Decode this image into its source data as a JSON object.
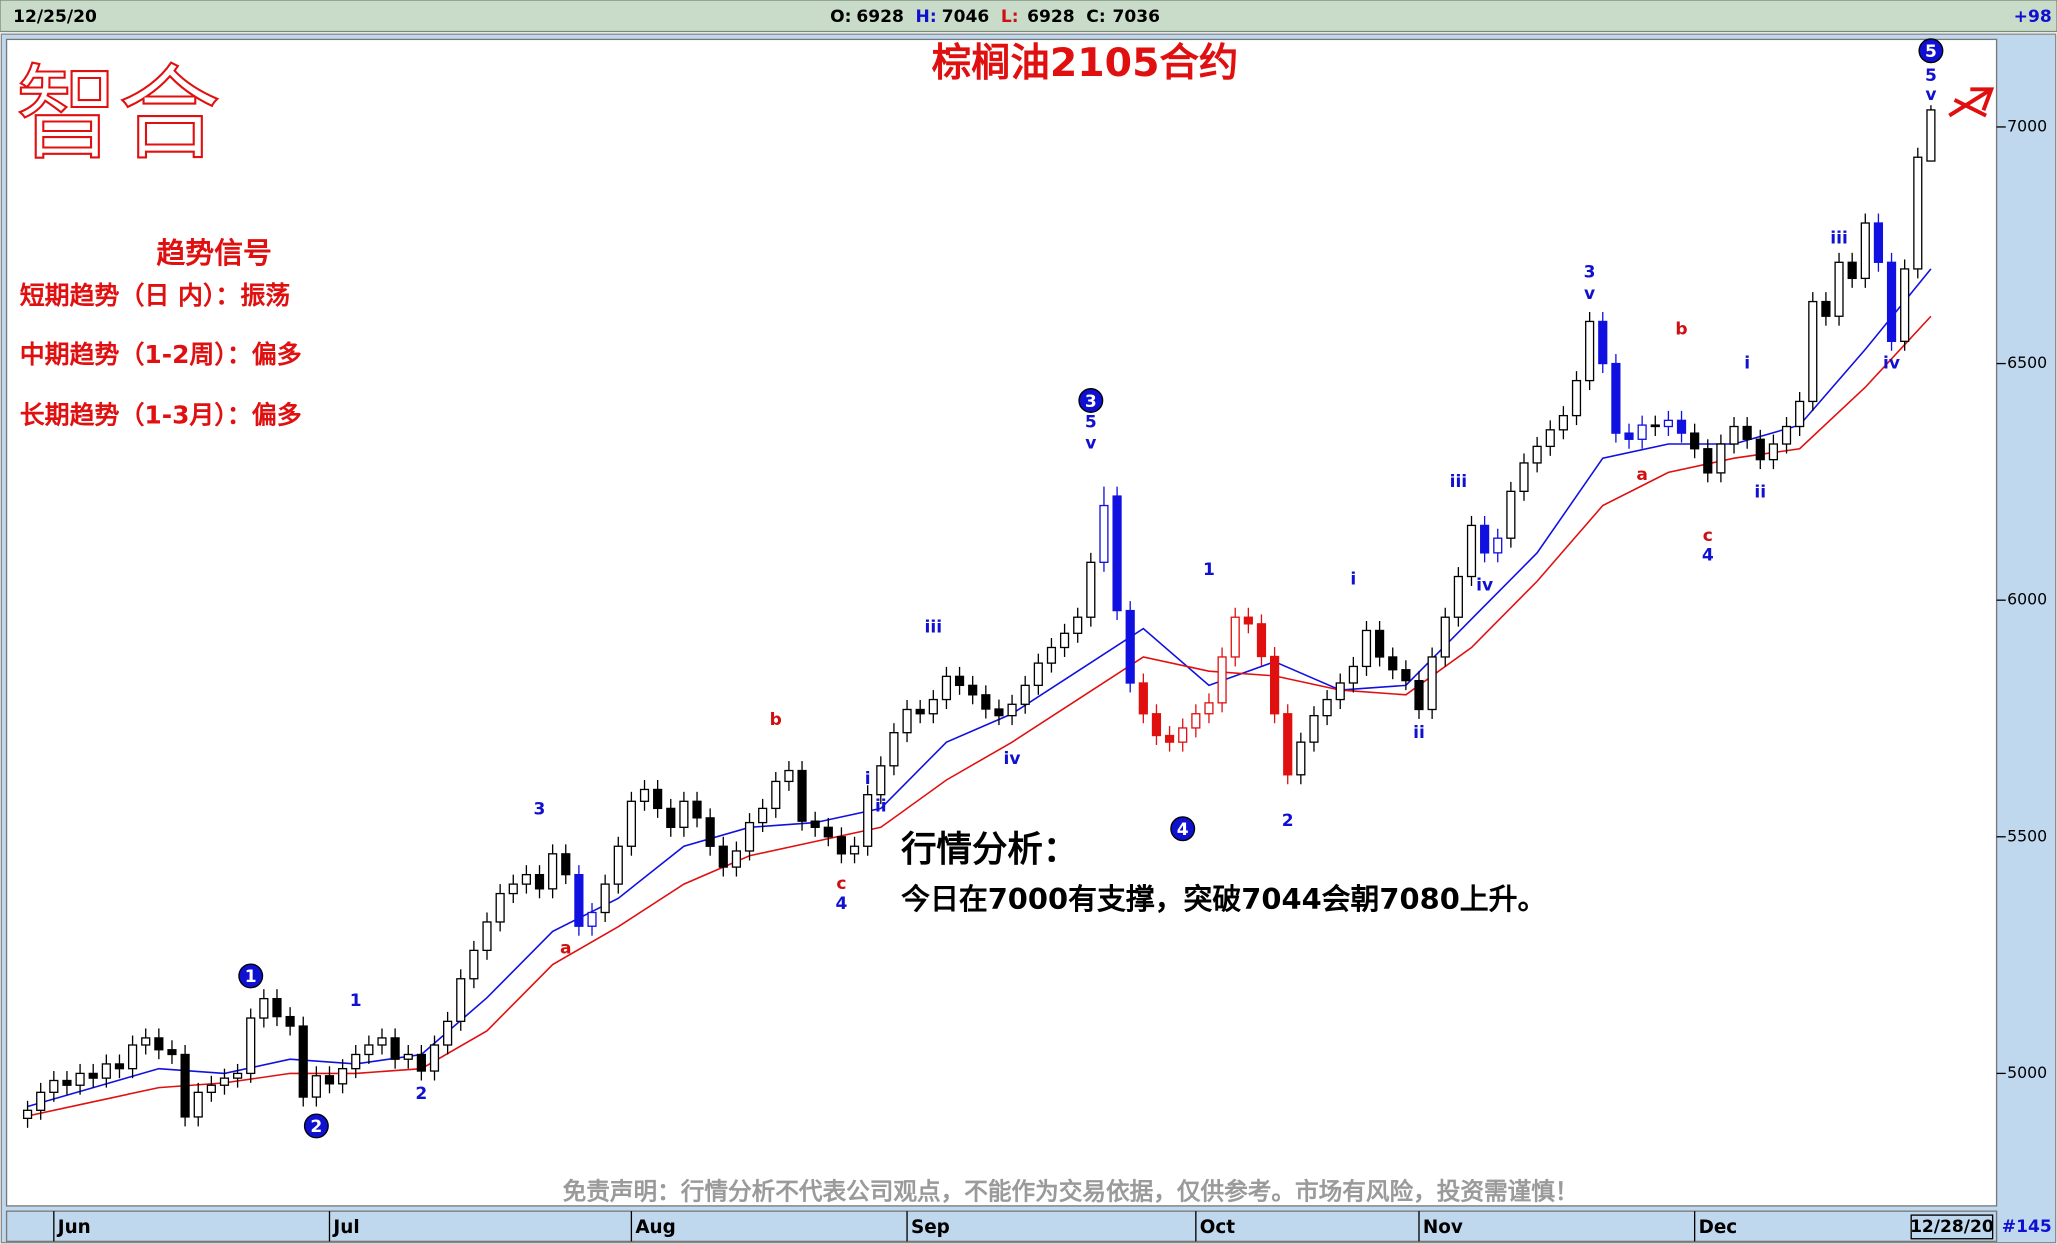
{
  "header": {
    "date": "12/25/20",
    "fields": [
      {
        "label": "O:",
        "value": 6928,
        "color": "#000"
      },
      {
        "label": "H:",
        "value": 7046,
        "color": "#1010d0"
      },
      {
        "label": "L:",
        "value": 6928,
        "color": "#d01010"
      },
      {
        "label": "C:",
        "value": 7036,
        "color": "#000"
      }
    ],
    "change": "+98"
  },
  "footer": {
    "date": "12/28/20",
    "count": "#145"
  },
  "logo": "智合",
  "signals": {
    "title": "趋势信号",
    "lines": [
      "短期趋势（日 内）：振荡",
      "中期趋势（1-2周）：偏多",
      "长期趋势（1-3月）：偏多"
    ]
  },
  "analysis": {
    "title": "行情分析：",
    "text": "今日在7000有支撑，突破7044会朝7080上升。"
  },
  "disclaimer": "免责声明：行情分析不代表公司观点，不能作为交易依据，仅供参考。市场有风险，投资需谨慎！",
  "chart_data": {
    "type": "candlestick",
    "title": "棕榈油2105合约",
    "ylim": [
      4720,
      7185
    ],
    "yticks": [
      5000,
      5500,
      6000,
      6500,
      7000
    ],
    "xlim": [
      -1,
      148
    ],
    "xticks": [
      {
        "value": 2,
        "label": "Jun"
      },
      {
        "value": 23,
        "label": "Jul"
      },
      {
        "value": 46,
        "label": "Aug"
      },
      {
        "value": 67,
        "label": "Sep"
      },
      {
        "value": 89,
        "label": "Oct"
      },
      {
        "value": 106,
        "label": "Nov"
      },
      {
        "value": 127,
        "label": "Dec"
      }
    ],
    "up_color": "#ffffff",
    "down_color": "#000000",
    "highlights": [
      {
        "start": 42,
        "end": 43,
        "color": "#1010e0"
      },
      {
        "start": 82,
        "end": 84,
        "color": "#1010e0"
      },
      {
        "start": 85,
        "end": 96,
        "color": "#e01010"
      },
      {
        "start": 111,
        "end": 112,
        "color": "#1010e0"
      },
      {
        "start": 120,
        "end": 123,
        "color": "#1010e0"
      },
      {
        "start": 125,
        "end": 126,
        "color": "#1010e0"
      },
      {
        "start": 141,
        "end": 142,
        "color": "#1010e0"
      }
    ],
    "open": [
      4905,
      4922,
      4960,
      4985,
      4975,
      5000,
      4990,
      5020,
      5010,
      5060,
      5075,
      5050,
      5040,
      4908,
      4960,
      4975,
      4990,
      5000,
      5117,
      5158,
      5120,
      5100,
      4950,
      4995,
      4978,
      5010,
      5040,
      5060,
      5075,
      5030,
      5040,
      5005,
      5060,
      5110,
      5200,
      5260,
      5320,
      5380,
      5400,
      5420,
      5390,
      5464,
      5420,
      5311,
      5340,
      5400,
      5480,
      5575,
      5600,
      5560,
      5520,
      5575,
      5540,
      5480,
      5436,
      5470,
      5530,
      5560,
      5617,
      5640,
      5533,
      5520,
      5500,
      5464,
      5480,
      5589,
      5650,
      5720,
      5769,
      5760,
      5790,
      5839,
      5820,
      5800,
      5770,
      5756,
      5780,
      5820,
      5867,
      5900,
      5930,
      5964,
      6080,
      6220,
      5978,
      5825,
      5760,
      5714,
      5700,
      5730,
      5760,
      5783,
      5880,
      5964,
      5950,
      5881,
      5760,
      5631,
      5700,
      5756,
      5790,
      5825,
      5860,
      5936,
      5880,
      5853,
      5830,
      5769,
      5880,
      5964,
      6050,
      6158,
      6100,
      6131,
      6230,
      6290,
      6325,
      6360,
      6390,
      6464,
      6589,
      6500,
      6353,
      6340,
      6370,
      6367,
      6380,
      6353,
      6320,
      6269,
      6330,
      6367,
      6340,
      6297,
      6330,
      6367,
      6420,
      6631,
      6600,
      6714,
      6680,
      6797,
      6714,
      6547,
      6700,
      6928
    ],
    "high": [
      4942,
      4980,
      5005,
      5005,
      5020,
      5020,
      5040,
      5040,
      5080,
      5095,
      5095,
      5070,
      5060,
      4980,
      4995,
      5010,
      5020,
      5137,
      5178,
      5178,
      5140,
      5120,
      5015,
      5015,
      5030,
      5060,
      5080,
      5095,
      5095,
      5060,
      5060,
      5080,
      5130,
      5220,
      5280,
      5340,
      5400,
      5420,
      5440,
      5440,
      5484,
      5484,
      5440,
      5360,
      5420,
      5500,
      5595,
      5620,
      5620,
      5580,
      5595,
      5595,
      5560,
      5500,
      5490,
      5550,
      5580,
      5637,
      5660,
      5660,
      5553,
      5540,
      5520,
      5500,
      5609,
      5670,
      5740,
      5789,
      5789,
      5810,
      5859,
      5859,
      5840,
      5820,
      5790,
      5800,
      5840,
      5887,
      5920,
      5950,
      5984,
      6100,
      6240,
      6240,
      5998,
      5845,
      5780,
      5734,
      5750,
      5780,
      5803,
      5900,
      5984,
      5984,
      5970,
      5901,
      5780,
      5720,
      5776,
      5810,
      5845,
      5880,
      5956,
      5956,
      5900,
      5873,
      5850,
      5900,
      5984,
      6070,
      6178,
      6178,
      6151,
      6250,
      6310,
      6345,
      6380,
      6410,
      6484,
      6609,
      6609,
      6520,
      6373,
      6390,
      6390,
      6400,
      6400,
      6373,
      6340,
      6350,
      6387,
      6387,
      6360,
      6350,
      6387,
      6440,
      6651,
      6651,
      6734,
      6734,
      6817,
      6817,
      6734,
      6720,
      6956,
      7046
    ],
    "low": [
      4885,
      4902,
      4940,
      4955,
      4955,
      4970,
      4970,
      4990,
      4990,
      5040,
      5030,
      5020,
      4888,
      4888,
      4940,
      4955,
      4970,
      4980,
      5097,
      5100,
      5080,
      4930,
      4930,
      4958,
      4958,
      4990,
      5020,
      5040,
      5010,
      5010,
      4985,
      4985,
      5040,
      5090,
      5180,
      5240,
      5300,
      5360,
      5380,
      5370,
      5370,
      5400,
      5291,
      5291,
      5320,
      5380,
      5460,
      5555,
      5540,
      5500,
      5500,
      5520,
      5460,
      5416,
      5416,
      5450,
      5510,
      5540,
      5597,
      5513,
      5500,
      5480,
      5444,
      5444,
      5460,
      5569,
      5630,
      5700,
      5740,
      5740,
      5770,
      5800,
      5780,
      5750,
      5736,
      5736,
      5760,
      5800,
      5847,
      5880,
      5910,
      5944,
      6060,
      5958,
      5805,
      5740,
      5694,
      5680,
      5680,
      5710,
      5740,
      5763,
      5860,
      5930,
      5861,
      5740,
      5611,
      5611,
      5680,
      5736,
      5770,
      5805,
      5840,
      5860,
      5833,
      5810,
      5749,
      5749,
      5860,
      5944,
      6030,
      6080,
      6080,
      6111,
      6210,
      6270,
      6305,
      6340,
      6370,
      6444,
      6480,
      6333,
      6320,
      6320,
      6347,
      6347,
      6333,
      6300,
      6249,
      6249,
      6310,
      6320,
      6277,
      6277,
      6310,
      6347,
      6400,
      6580,
      6580,
      6660,
      6660,
      6694,
      6527,
      6527,
      6680,
      6928
    ],
    "close": [
      4922,
      4960,
      4985,
      4975,
      5000,
      4990,
      5020,
      5010,
      5060,
      5075,
      5050,
      5040,
      4908,
      4960,
      4975,
      4990,
      5000,
      5117,
      5158,
      5120,
      5100,
      4950,
      4995,
      4978,
      5010,
      5040,
      5060,
      5075,
      5030,
      5040,
      5005,
      5060,
      5110,
      5200,
      5260,
      5320,
      5380,
      5400,
      5420,
      5390,
      5464,
      5420,
      5311,
      5340,
      5400,
      5480,
      5575,
      5600,
      5560,
      5520,
      5575,
      5540,
      5480,
      5436,
      5470,
      5530,
      5560,
      5617,
      5640,
      5533,
      5520,
      5500,
      5464,
      5480,
      5589,
      5650,
      5720,
      5769,
      5760,
      5790,
      5839,
      5820,
      5800,
      5770,
      5756,
      5780,
      5820,
      5867,
      5900,
      5930,
      5964,
      6080,
      6200,
      5978,
      5825,
      5760,
      5714,
      5700,
      5730,
      5760,
      5783,
      5880,
      5964,
      5950,
      5881,
      5760,
      5631,
      5700,
      5756,
      5790,
      5825,
      5860,
      5936,
      5880,
      5853,
      5830,
      5769,
      5880,
      5964,
      6050,
      6158,
      6100,
      6131,
      6230,
      6290,
      6325,
      6360,
      6390,
      6464,
      6589,
      6500,
      6353,
      6340,
      6370,
      6367,
      6380,
      6353,
      6320,
      6269,
      6330,
      6367,
      6340,
      6297,
      6330,
      6367,
      6420,
      6631,
      6600,
      6714,
      6680,
      6797,
      6714,
      6547,
      6700,
      6936,
      7036
    ],
    "lines": [
      {
        "color": "#1010e0",
        "x": [
          0,
          5,
          10,
          15,
          20,
          25,
          30,
          35,
          40,
          45,
          50,
          55,
          60,
          65,
          70,
          75,
          80,
          85,
          90,
          95,
          100,
          105,
          110,
          115,
          120,
          125,
          130,
          135,
          140,
          145
        ],
        "values": [
          4930,
          4970,
          5010,
          5000,
          5030,
          5020,
          5040,
          5160,
          5300,
          5370,
          5480,
          5520,
          5530,
          5560,
          5700,
          5760,
          5850,
          5940,
          5820,
          5870,
          5810,
          5820,
          5960,
          6100,
          6300,
          6330,
          6330,
          6370,
          6530,
          6700
        ]
      },
      {
        "color": "#e01010",
        "x": [
          0,
          5,
          10,
          15,
          20,
          25,
          30,
          35,
          40,
          45,
          50,
          55,
          60,
          65,
          70,
          75,
          80,
          85,
          90,
          95,
          100,
          105,
          110,
          115,
          120,
          125,
          130,
          135,
          140,
          145
        ],
        "values": [
          4910,
          4940,
          4970,
          4980,
          5000,
          5000,
          5010,
          5090,
          5230,
          5310,
          5400,
          5460,
          5490,
          5520,
          5620,
          5700,
          5790,
          5880,
          5850,
          5840,
          5810,
          5800,
          5900,
          6040,
          6200,
          6270,
          6300,
          6320,
          6450,
          6600
        ]
      }
    ],
    "annotations": [
      {
        "text": "1",
        "x": 17,
        "y": 5206,
        "color": "#1010d0",
        "circled": true
      },
      {
        "text": "2",
        "x": 22,
        "y": 4889,
        "color": "#1010d0",
        "circled": true
      },
      {
        "text": "1",
        "x": 25,
        "y": 5153,
        "color": "#1010d0"
      },
      {
        "text": "2",
        "x": 30,
        "y": 4956,
        "color": "#1010d0"
      },
      {
        "text": "3",
        "x": 39,
        "y": 5558,
        "color": "#1010d0"
      },
      {
        "text": "a",
        "x": 41,
        "y": 5264,
        "color": "#d01010"
      },
      {
        "text": "b",
        "x": 57,
        "y": 5747,
        "color": "#d01010"
      },
      {
        "text": "c",
        "x": 62,
        "y": 5400,
        "color": "#d01010"
      },
      {
        "text": "4",
        "x": 62,
        "y": 5358,
        "color": "#1010d0"
      },
      {
        "text": "i",
        "x": 64,
        "y": 5622,
        "color": "#1010d0"
      },
      {
        "text": "ii",
        "x": 65,
        "y": 5564,
        "color": "#1010d0"
      },
      {
        "text": "iii",
        "x": 69,
        "y": 5942,
        "color": "#1010d0"
      },
      {
        "text": "iv",
        "x": 75,
        "y": 5664,
        "color": "#1010d0"
      },
      {
        "text": "3",
        "x": 81,
        "y": 6422,
        "color": "#1010d0",
        "circled": true
      },
      {
        "text": "5",
        "x": 81,
        "y": 6375,
        "color": "#1010d0"
      },
      {
        "text": "v",
        "x": 81,
        "y": 6331,
        "color": "#1010d0"
      },
      {
        "text": "4",
        "x": 88,
        "y": 5517,
        "color": "#1010d0",
        "circled": true
      },
      {
        "text": "1",
        "x": 90,
        "y": 6064,
        "color": "#1010d0"
      },
      {
        "text": "2",
        "x": 96,
        "y": 5533,
        "color": "#1010d0"
      },
      {
        "text": "i",
        "x": 101,
        "y": 6044,
        "color": "#1010d0"
      },
      {
        "text": "ii",
        "x": 106,
        "y": 5719,
        "color": "#1010d0"
      },
      {
        "text": "iii",
        "x": 109,
        "y": 6250,
        "color": "#1010d0"
      },
      {
        "text": "iv",
        "x": 111,
        "y": 6031,
        "color": "#1010d0"
      },
      {
        "text": "3",
        "x": 119,
        "y": 6692,
        "color": "#1010d0"
      },
      {
        "text": "v",
        "x": 119,
        "y": 6647,
        "color": "#1010d0"
      },
      {
        "text": "a",
        "x": 123,
        "y": 6264,
        "color": "#d01010"
      },
      {
        "text": "b",
        "x": 126,
        "y": 6572,
        "color": "#d01010"
      },
      {
        "text": "c",
        "x": 128,
        "y": 6136,
        "color": "#d01010"
      },
      {
        "text": "4",
        "x": 128,
        "y": 6094,
        "color": "#1010d0"
      },
      {
        "text": "i",
        "x": 131,
        "y": 6500,
        "color": "#1010d0"
      },
      {
        "text": "ii",
        "x": 132,
        "y": 6228,
        "color": "#1010d0"
      },
      {
        "text": "iii",
        "x": 138,
        "y": 6764,
        "color": "#1010d0"
      },
      {
        "text": "iv",
        "x": 142,
        "y": 6500,
        "color": "#1010d0"
      },
      {
        "text": "5",
        "x": 145,
        "y": 7161,
        "color": "#1010d0",
        "circled": true
      },
      {
        "text": "5",
        "x": 145,
        "y": 7108,
        "color": "#1010d0"
      },
      {
        "text": "v",
        "x": 145,
        "y": 7067,
        "color": "#1010d0"
      }
    ]
  }
}
